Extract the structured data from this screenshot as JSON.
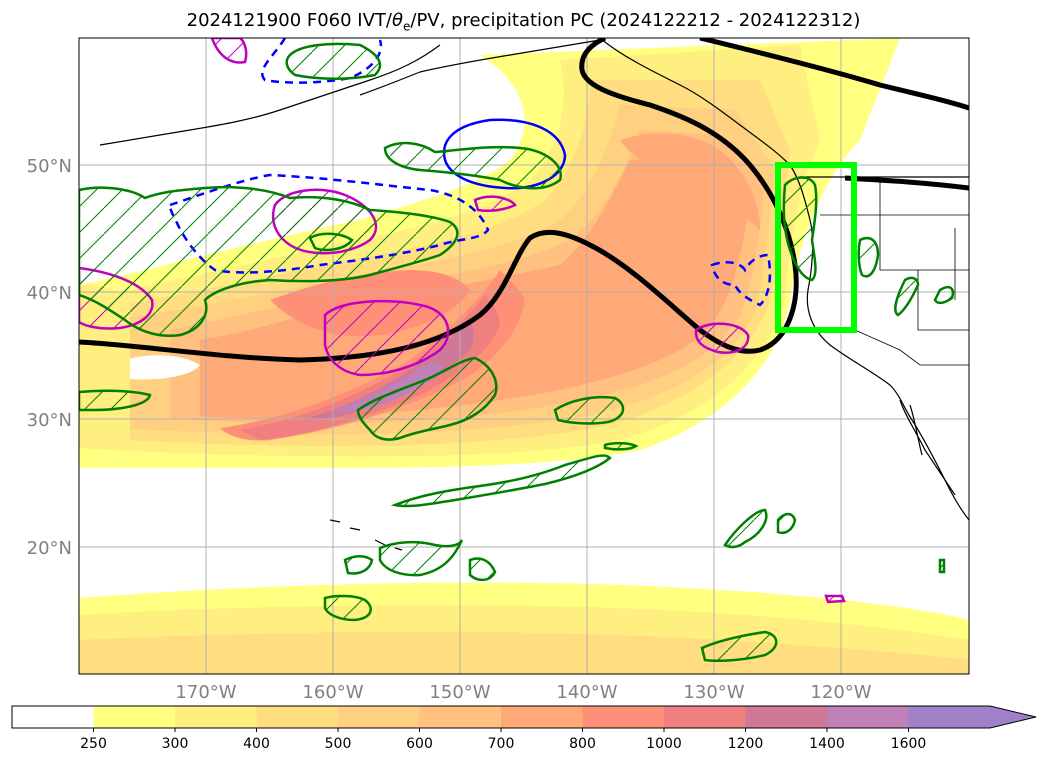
{
  "title": {
    "prefix": "2024121900 F060 IVT/",
    "theta": "θ",
    "sub": "e",
    "suffix": "/PV, precipitation PC (2024122212 - 2024122312)"
  },
  "map": {
    "type": "map",
    "lat_ticks": [
      {
        "value": 20,
        "label": "20°N"
      },
      {
        "value": 30,
        "label": "30°N"
      },
      {
        "value": 40,
        "label": "40°N"
      },
      {
        "value": 50,
        "label": "50°N"
      }
    ],
    "lon_ticks": [
      {
        "value": -170,
        "label": "170°W"
      },
      {
        "value": -160,
        "label": "160°W"
      },
      {
        "value": -150,
        "label": "150°W"
      },
      {
        "value": -140,
        "label": "140°W"
      },
      {
        "value": -130,
        "label": "130°W"
      },
      {
        "value": -120,
        "label": "120°W"
      }
    ],
    "lon_range": [
      -180,
      -110
    ],
    "lat_range": [
      10,
      60
    ],
    "grid": true,
    "highlight_box": {
      "lon": [
        -125,
        -119
      ],
      "lat": [
        37,
        50
      ],
      "color": "#00ff00"
    }
  },
  "colorbar": {
    "levels": [
      "250",
      "300",
      "400",
      "500",
      "600",
      "700",
      "800",
      "1000",
      "1200",
      "1400",
      "1600"
    ],
    "colors": [
      "#ffff80",
      "#ffee80",
      "#ffdd80",
      "#ffd080",
      "#ffc080",
      "#ffa878",
      "#ff9078",
      "#f08080",
      "#d07898",
      "#c080b8",
      "#a080c8"
    ],
    "extend": "max"
  },
  "colors": {
    "pv_contour": "#000000",
    "theta_pos": "#0000ff",
    "theta_neg": "#c000c0",
    "precip": "#008000"
  }
}
